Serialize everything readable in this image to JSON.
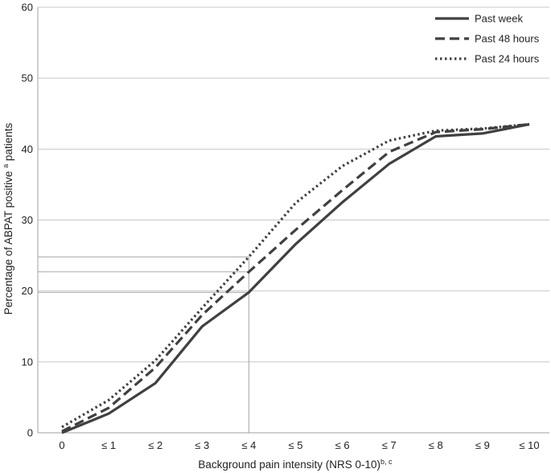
{
  "chart_data": {
    "type": "line",
    "xlabel": "Background pain intensity (NRS 0-10)",
    "xlabel_sup": "b, c",
    "ylabel": "Percentage of ABPAT positive",
    "ylabel_sup": "a",
    "ylabel_suffix": "patients",
    "categories": [
      "0",
      "≤ 1",
      "≤ 2",
      "≤ 3",
      "≤ 4",
      "≤ 5",
      "≤ 6",
      "≤ 7",
      "≤ 8",
      "≤ 9",
      "≤ 10"
    ],
    "ylim": [
      0,
      60
    ],
    "yticks": [
      0,
      10,
      20,
      30,
      40,
      50,
      60
    ],
    "grid": true,
    "legend_position": "top-right",
    "series": [
      {
        "name": "Past week",
        "style": "solid",
        "color": "#404040",
        "values": [
          0.0,
          2.7,
          7.0,
          15.0,
          19.8,
          26.6,
          32.5,
          37.9,
          41.8,
          42.2,
          43.5
        ]
      },
      {
        "name": "Past 48 hours",
        "style": "dashed",
        "color": "#404040",
        "values": [
          0.2,
          3.5,
          9.2,
          16.6,
          22.7,
          28.6,
          34.2,
          39.6,
          42.4,
          42.8,
          43.5
        ]
      },
      {
        "name": "Past 24 hours",
        "style": "dotted",
        "color": "#404040",
        "values": [
          0.8,
          4.6,
          10.2,
          17.6,
          24.8,
          32.4,
          37.6,
          41.2,
          42.6,
          42.9,
          43.5
        ]
      }
    ],
    "reference_lines": {
      "x_category": "≤ 4",
      "y_values": [
        19.8,
        22.7,
        24.8
      ]
    }
  }
}
